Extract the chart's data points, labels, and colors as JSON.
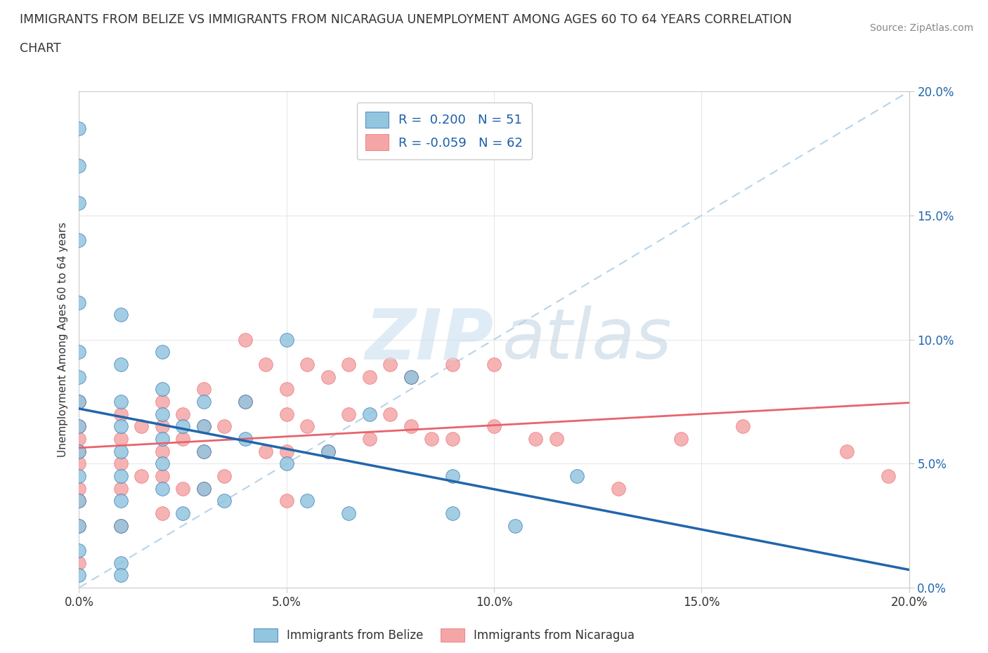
{
  "title_line1": "IMMIGRANTS FROM BELIZE VS IMMIGRANTS FROM NICARAGUA UNEMPLOYMENT AMONG AGES 60 TO 64 YEARS CORRELATION",
  "title_line2": "CHART",
  "source_text": "Source: ZipAtlas.com",
  "ylabel": "Unemployment Among Ages 60 to 64 years",
  "xlim": [
    0.0,
    0.2
  ],
  "ylim": [
    0.0,
    0.2
  ],
  "xticks": [
    0.0,
    0.05,
    0.1,
    0.15,
    0.2
  ],
  "yticks": [
    0.0,
    0.05,
    0.1,
    0.15,
    0.2
  ],
  "belize_color": "#92c5de",
  "nicaragua_color": "#f4a6a6",
  "belize_line_color": "#2166ac",
  "nicaragua_line_color": "#e8636d",
  "diag_color": "#b8d4e8",
  "belize_R": 0.2,
  "belize_N": 51,
  "nicaragua_R": -0.059,
  "nicaragua_N": 62,
  "belize_x": [
    0.0,
    0.0,
    0.0,
    0.0,
    0.0,
    0.0,
    0.0,
    0.0,
    0.0,
    0.0,
    0.0,
    0.0,
    0.0,
    0.0,
    0.0,
    0.01,
    0.01,
    0.01,
    0.01,
    0.01,
    0.01,
    0.01,
    0.01,
    0.01,
    0.01,
    0.02,
    0.02,
    0.02,
    0.02,
    0.02,
    0.02,
    0.025,
    0.025,
    0.03,
    0.03,
    0.03,
    0.03,
    0.035,
    0.04,
    0.04,
    0.05,
    0.05,
    0.055,
    0.06,
    0.065,
    0.07,
    0.08,
    0.09,
    0.09,
    0.105,
    0.12
  ],
  "belize_y": [
    0.185,
    0.17,
    0.155,
    0.14,
    0.115,
    0.095,
    0.085,
    0.075,
    0.065,
    0.055,
    0.045,
    0.035,
    0.025,
    0.015,
    0.005,
    0.11,
    0.09,
    0.075,
    0.065,
    0.055,
    0.045,
    0.035,
    0.025,
    0.01,
    0.005,
    0.095,
    0.08,
    0.07,
    0.06,
    0.05,
    0.04,
    0.065,
    0.03,
    0.075,
    0.065,
    0.055,
    0.04,
    0.035,
    0.075,
    0.06,
    0.1,
    0.05,
    0.035,
    0.055,
    0.03,
    0.07,
    0.085,
    0.045,
    0.03,
    0.025,
    0.045
  ],
  "nicaragua_x": [
    0.0,
    0.0,
    0.0,
    0.0,
    0.0,
    0.0,
    0.0,
    0.0,
    0.0,
    0.01,
    0.01,
    0.01,
    0.01,
    0.01,
    0.015,
    0.015,
    0.02,
    0.02,
    0.02,
    0.02,
    0.02,
    0.025,
    0.025,
    0.025,
    0.03,
    0.03,
    0.03,
    0.03,
    0.035,
    0.035,
    0.04,
    0.04,
    0.045,
    0.045,
    0.05,
    0.05,
    0.05,
    0.05,
    0.055,
    0.055,
    0.06,
    0.06,
    0.065,
    0.065,
    0.07,
    0.07,
    0.075,
    0.075,
    0.08,
    0.08,
    0.085,
    0.09,
    0.09,
    0.1,
    0.1,
    0.11,
    0.115,
    0.13,
    0.145,
    0.16,
    0.185,
    0.195
  ],
  "nicaragua_y": [
    0.075,
    0.065,
    0.06,
    0.055,
    0.05,
    0.04,
    0.035,
    0.025,
    0.01,
    0.07,
    0.06,
    0.05,
    0.04,
    0.025,
    0.065,
    0.045,
    0.075,
    0.065,
    0.055,
    0.045,
    0.03,
    0.07,
    0.06,
    0.04,
    0.08,
    0.065,
    0.055,
    0.04,
    0.065,
    0.045,
    0.1,
    0.075,
    0.09,
    0.055,
    0.08,
    0.07,
    0.055,
    0.035,
    0.09,
    0.065,
    0.085,
    0.055,
    0.09,
    0.07,
    0.085,
    0.06,
    0.09,
    0.07,
    0.085,
    0.065,
    0.06,
    0.09,
    0.06,
    0.09,
    0.065,
    0.06,
    0.06,
    0.04,
    0.06,
    0.065,
    0.055,
    0.045
  ]
}
